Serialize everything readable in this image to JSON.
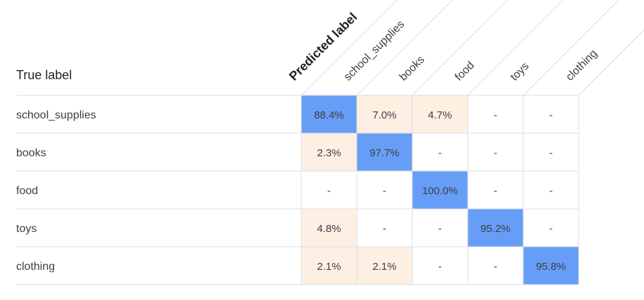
{
  "chart_data": {
    "type": "heatmap",
    "row_header": "True label",
    "col_header": "Predicted label",
    "rows": [
      "school_supplies",
      "books",
      "food",
      "toys",
      "clothing"
    ],
    "columns": [
      "school_supplies",
      "books",
      "food",
      "toys",
      "clothing"
    ],
    "values": [
      [
        88.4,
        7.0,
        4.7,
        null,
        null
      ],
      [
        2.3,
        97.7,
        null,
        null,
        null
      ],
      [
        null,
        null,
        100.0,
        null,
        null
      ],
      [
        4.8,
        null,
        null,
        95.2,
        null
      ],
      [
        2.1,
        2.1,
        null,
        null,
        95.8
      ]
    ],
    "value_labels": [
      [
        "88.4%",
        "7.0%",
        "4.7%",
        "-",
        "-"
      ],
      [
        "2.3%",
        "97.7%",
        "-",
        "-",
        "-"
      ],
      [
        "-",
        "-",
        "100.0%",
        "-",
        "-"
      ],
      [
        "4.8%",
        "-",
        "-",
        "95.2%",
        "-"
      ],
      [
        "2.1%",
        "2.1%",
        "-",
        "-",
        "95.8%"
      ]
    ],
    "colors": {
      "diagonal": "#669df6",
      "off_diagonal": "#feefe3",
      "empty": "#ffffff",
      "grid": "#dadce0",
      "text": "#3c4043"
    }
  }
}
